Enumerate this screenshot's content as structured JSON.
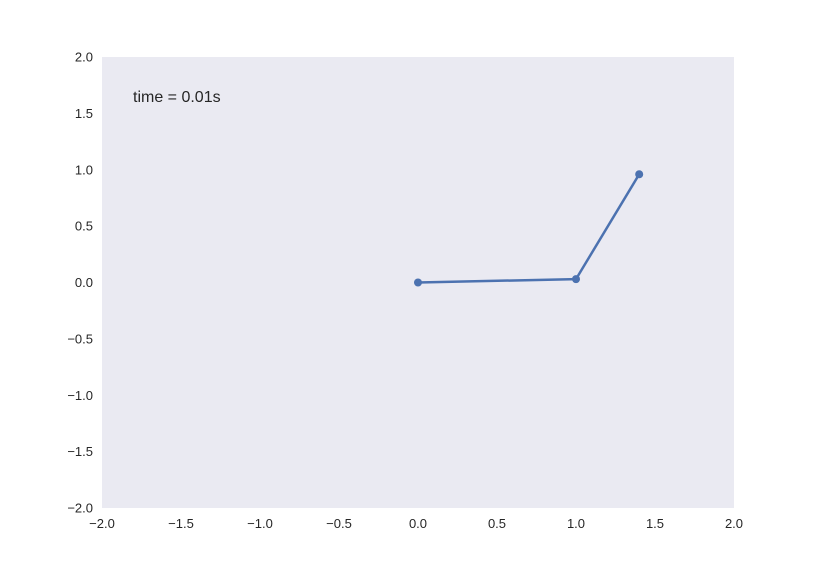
{
  "chart_data": {
    "type": "line",
    "title": "",
    "xlabel": "",
    "ylabel": "",
    "xlim": [
      -2.0,
      2.0
    ],
    "ylim": [
      -2.0,
      2.0
    ],
    "grid": false,
    "background_color": "#eaeaf2",
    "x_ticks": [
      -2.0,
      -1.5,
      -1.0,
      -0.5,
      0.0,
      0.5,
      1.0,
      1.5,
      2.0
    ],
    "y_ticks": [
      -2.0,
      -1.5,
      -1.0,
      -0.5,
      0.0,
      0.5,
      1.0,
      1.5,
      2.0
    ],
    "x_tick_labels": [
      "−2.0",
      "−1.5",
      "−1.0",
      "−0.5",
      "0.0",
      "0.5",
      "1.0",
      "1.5",
      "2.0"
    ],
    "y_tick_labels": [
      "−2.0",
      "−1.5",
      "−1.0",
      "−0.5",
      "0.0",
      "0.5",
      "1.0",
      "1.5",
      "2.0"
    ],
    "annotation": "time = 0.01s",
    "series": [
      {
        "color": "#4c72b0",
        "marker": "circle",
        "x": [
          0.0,
          1.0,
          1.4
        ],
        "y": [
          0.0,
          0.03,
          0.96
        ]
      }
    ]
  }
}
